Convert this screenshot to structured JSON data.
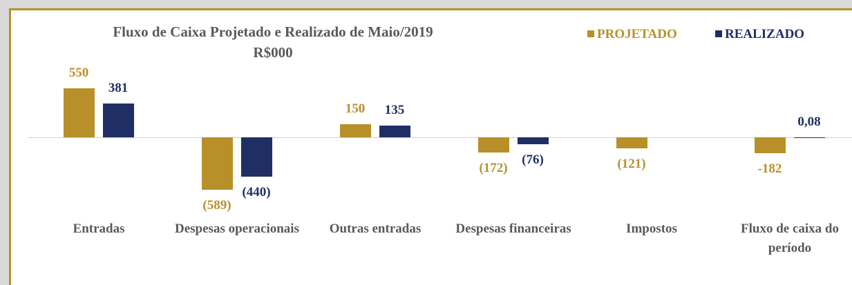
{
  "chart_data": {
    "type": "bar",
    "title": "Fluxo de Caixa  Projetado e Realizado de Maio/2019",
    "subtitle": "R$000",
    "categories": [
      "Entradas",
      "Despesas operacionais",
      "Outras entradas",
      "Despesas financeiras",
      "Impostos",
      "Fluxo de caixa do período"
    ],
    "series": [
      {
        "name": "PROJETADO",
        "color": "#b8902a",
        "values": [
          550,
          -589,
          150,
          -172,
          -121,
          -182
        ],
        "value_labels": [
          "550",
          "(589)",
          "150",
          "(172)",
          "(121)",
          "-182"
        ]
      },
      {
        "name": "REALIZADO",
        "color": "#1f2f66",
        "values": [
          381,
          -440,
          135,
          -76,
          null,
          0.08
        ],
        "value_labels": [
          "381",
          "(440)",
          "135",
          "(76)",
          null,
          "0,08"
        ]
      }
    ],
    "legend": "top-right"
  }
}
